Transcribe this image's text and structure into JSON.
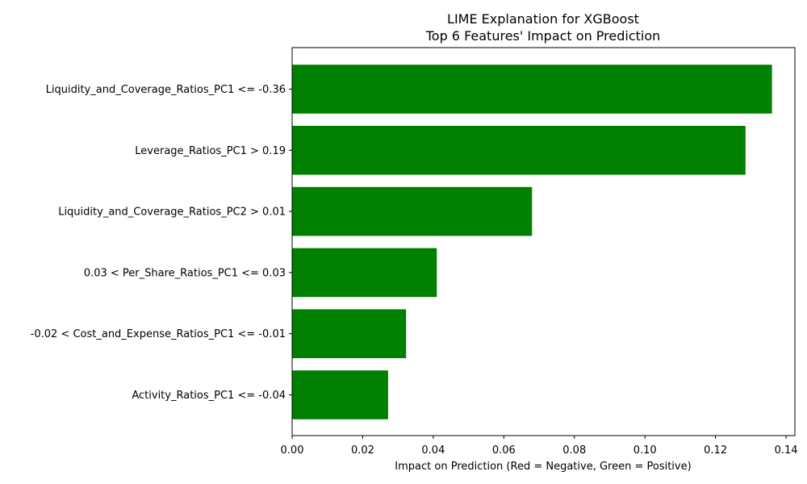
{
  "chart_data": {
    "type": "bar",
    "orientation": "horizontal",
    "title": [
      "LIME Explanation for XGBoost",
      "Top 6 Features' Impact on Prediction"
    ],
    "xlabel": "Impact on Prediction (Red = Negative, Green = Positive)",
    "ylabel": "",
    "xlim": [
      0,
      0.1425
    ],
    "xticks": [
      0.0,
      0.02,
      0.04,
      0.06,
      0.08,
      0.1,
      0.12,
      0.14
    ],
    "xtick_labels": [
      "0.00",
      "0.02",
      "0.04",
      "0.06",
      "0.08",
      "0.10",
      "0.12",
      "0.14"
    ],
    "categories": [
      "Liquidity_and_Coverage_Ratios_PC1 <= -0.36",
      "Leverage_Ratios_PC1 > 0.19",
      "Liquidity_and_Coverage_Ratios_PC2 > 0.01",
      "0.03 < Per_Share_Ratios_PC1 <= 0.03",
      "-0.02 < Cost_and_Expense_Ratios_PC1 <= -0.01",
      "Activity_Ratios_PC1 <= -0.04"
    ],
    "values": [
      0.136,
      0.1285,
      0.068,
      0.041,
      0.0323,
      0.0272
    ],
    "colors": [
      "#008000",
      "#008000",
      "#008000",
      "#008000",
      "#008000",
      "#008000"
    ],
    "grid": false,
    "legend": "none"
  }
}
